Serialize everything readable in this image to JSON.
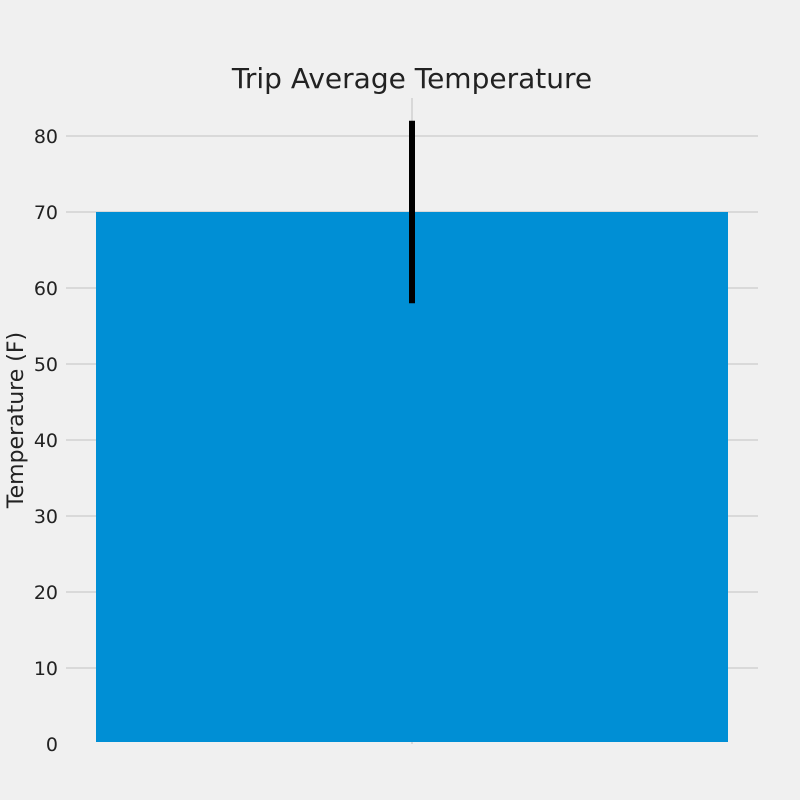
{
  "colors": {
    "background": "#f0f0f0",
    "bar": "#008fd5",
    "error_bar": "#000000",
    "grid": "#cbcbcb",
    "text": "#222222"
  },
  "chart_data": {
    "type": "bar",
    "title": "Trip Average Temperature",
    "xlabel": "",
    "ylabel": "Temperature (F)",
    "categories": [
      ""
    ],
    "values": [
      70
    ],
    "error_bars": [
      {
        "low": 58,
        "high": 82
      }
    ],
    "ylim": [
      0,
      85
    ],
    "yticks": [
      0,
      10,
      20,
      30,
      40,
      50,
      60,
      70,
      80
    ],
    "grid": true,
    "legend": "none"
  }
}
